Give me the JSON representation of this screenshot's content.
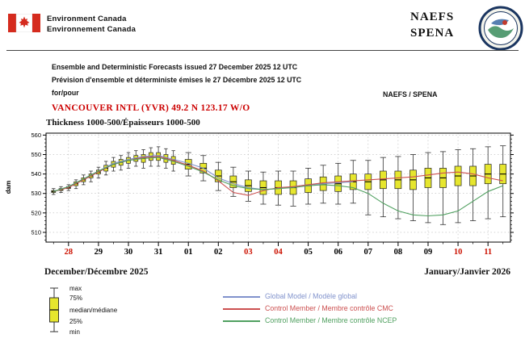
{
  "header": {
    "org_en": "Environment Canada",
    "org_fr": "Environnement Canada",
    "program_line1": "NAEFS",
    "program_line2": "SPENA"
  },
  "titles": {
    "issued_en": "Ensemble and Deterministic Forecasts issued 27 December 2025 12 UTC",
    "issued_fr": "Prévision d'ensemble et déterministe émises le 27 Décembre 2025 12 UTC",
    "for_label": "for/pour",
    "program": "NAEFS / SPENA",
    "station": "VANCOUVER INTL (YVR) 49.2 N  123.17 W/O",
    "parameter": "Thickness 1000-500/Épaisseurs 1000-500"
  },
  "axis": {
    "y_label": "dam",
    "month_left": "December/Décembre 2025",
    "month_right": "January/Janvier 2026"
  },
  "legend": {
    "box": [
      "max",
      "75%",
      "median/médiane",
      "25%",
      "min"
    ],
    "lines": [
      {
        "label": "Global Model / Modèle global",
        "color": "#8092cc"
      },
      {
        "label": "Control Member / Membre contrôle CMC",
        "color": "#cc5050"
      },
      {
        "label": "Control Member / Membre contrôle NCEP",
        "color": "#50a060"
      }
    ]
  },
  "chart_data": {
    "type": "box-plot-timeseries",
    "title": "Thickness 1000-500/Épaisseurs 1000-500",
    "xlabel": "",
    "ylabel": "dam",
    "ylim": [
      505,
      561
    ],
    "yticks": [
      510,
      520,
      530,
      540,
      550,
      560
    ],
    "grid": "dashed",
    "box_color": "#e6e62e",
    "day_tick_red_color": "#cc1100",
    "x_days": [
      {
        "label": "28",
        "red": true
      },
      {
        "label": "29",
        "red": false
      },
      {
        "label": "30",
        "red": false
      },
      {
        "label": "31",
        "red": false
      },
      {
        "label": "01",
        "red": false
      },
      {
        "label": "02",
        "red": false
      },
      {
        "label": "03",
        "red": true
      },
      {
        "label": "04",
        "red": true
      },
      {
        "label": "05",
        "red": false
      },
      {
        "label": "06",
        "red": false
      },
      {
        "label": "07",
        "red": false
      },
      {
        "label": "08",
        "red": false
      },
      {
        "label": "09",
        "red": false
      },
      {
        "label": "10",
        "red": true
      },
      {
        "label": "11",
        "red": true
      }
    ],
    "boxes": {
      "t": [
        0,
        0.25,
        0.5,
        0.75,
        1,
        1.25,
        1.5,
        1.75,
        2,
        2.25,
        2.5,
        2.75,
        3,
        3.25,
        3.5,
        3.75,
        4,
        4.5,
        5,
        5.5,
        6,
        6.5,
        7,
        7.5,
        8,
        8.5,
        9,
        9.5,
        10,
        10.5,
        11,
        11.5,
        12,
        12.5,
        13,
        13.5,
        14,
        14.5,
        15
      ],
      "median": [
        531,
        532,
        533,
        535,
        537,
        539,
        541,
        543,
        545,
        546,
        547,
        548,
        548,
        549,
        549,
        548,
        547,
        545,
        543,
        539,
        536,
        534,
        533,
        533,
        533,
        534,
        535,
        535,
        536,
        536,
        537,
        537,
        537,
        538,
        538,
        539,
        539,
        540,
        540
      ],
      "q1": [
        530.5,
        531.5,
        532.5,
        534,
        536,
        538,
        540,
        541.5,
        543.5,
        544.5,
        545.5,
        546.5,
        546,
        547,
        547,
        546,
        545,
        542.5,
        540.5,
        536,
        533,
        531,
        529.5,
        529.5,
        529.5,
        530.5,
        531.5,
        531,
        532,
        532,
        532.5,
        532.5,
        532,
        533,
        533,
        534,
        534,
        535,
        535
      ],
      "q3": [
        531.5,
        532.5,
        533.5,
        536,
        538,
        540,
        542,
        544.5,
        546.5,
        547.5,
        548.5,
        549.5,
        550,
        551,
        551,
        550,
        549,
        547.5,
        545.5,
        542,
        539,
        537,
        536.5,
        536.5,
        536.5,
        537.5,
        538.5,
        539,
        540,
        540,
        541.5,
        541.5,
        542,
        543,
        543,
        544,
        544,
        545,
        545
      ],
      "min": [
        529.5,
        530.5,
        531.5,
        532.5,
        534.5,
        536,
        538,
        539.5,
        541.5,
        542,
        543,
        544,
        543,
        544,
        544,
        543,
        541.5,
        539,
        536.5,
        531.5,
        528.5,
        526,
        524.5,
        524,
        523.5,
        524.5,
        525,
        524.5,
        525,
        519,
        518,
        517,
        516,
        515,
        514,
        515,
        516,
        517,
        518
      ],
      "max": [
        532.5,
        533.5,
        534.5,
        537,
        539.5,
        541.5,
        543.5,
        546.5,
        548.5,
        549.5,
        551,
        552,
        552.5,
        553.5,
        554,
        553,
        552,
        551,
        549.5,
        546,
        543.5,
        541.5,
        541,
        541.5,
        541.5,
        543,
        544.5,
        545.5,
        547,
        547,
        548.5,
        549,
        550,
        551,
        551.5,
        552.5,
        553,
        554,
        554.5
      ]
    },
    "series": [
      {
        "name": "Global Model / Modèle global",
        "color": "#8092cc",
        "t": [
          0,
          0.5,
          1,
          1.5,
          2,
          2.5,
          3,
          3.5,
          4,
          4.5,
          5,
          5.5,
          6,
          6.5,
          7,
          7.5,
          8,
          8.5,
          9,
          9.5,
          10
        ],
        "v": [
          531,
          533.5,
          537.5,
          541.5,
          545.5,
          547.5,
          549,
          549.5,
          547.5,
          545.5,
          543,
          538,
          535,
          533,
          532,
          532.5,
          533.5,
          534.5,
          535,
          535.5,
          536
        ]
      },
      {
        "name": "Control Member / Membre contrôle CMC",
        "color": "#cc5050",
        "t": [
          0,
          0.5,
          1,
          1.5,
          2,
          2.5,
          3,
          3.5,
          4,
          4.5,
          5,
          5.5,
          6,
          6.5,
          7,
          7.5,
          8,
          8.5,
          9,
          9.5,
          10,
          10.5,
          11,
          11.5,
          12,
          12.5,
          13,
          13.5,
          14,
          14.5,
          15
        ],
        "v": [
          531,
          533,
          537,
          541,
          545,
          547,
          548.5,
          549,
          547,
          544.5,
          541.5,
          536.5,
          530.5,
          529,
          531.5,
          533,
          533.5,
          534.5,
          535.5,
          536,
          536.5,
          537,
          537.5,
          538,
          538.5,
          539.5,
          540.5,
          541,
          540,
          538,
          536.5
        ]
      },
      {
        "name": "Control Member / Membre contrôle NCEP",
        "color": "#50a060",
        "t": [
          0,
          0.5,
          1,
          1.5,
          2,
          2.5,
          3,
          3.5,
          4,
          4.5,
          5,
          5.5,
          6,
          6.5,
          7,
          7.5,
          8,
          8.5,
          9,
          9.5,
          10,
          10.5,
          11,
          11.5,
          12,
          12.5,
          13,
          13.5,
          14,
          14.5,
          15
        ],
        "v": [
          531,
          533.5,
          537.5,
          541.5,
          545,
          547,
          548,
          548.5,
          546.5,
          544,
          541,
          537,
          534,
          532.5,
          532,
          532.5,
          533,
          534,
          534.5,
          534,
          533,
          530,
          525,
          521,
          519,
          518.5,
          519,
          521,
          526,
          531,
          534
        ]
      }
    ]
  }
}
